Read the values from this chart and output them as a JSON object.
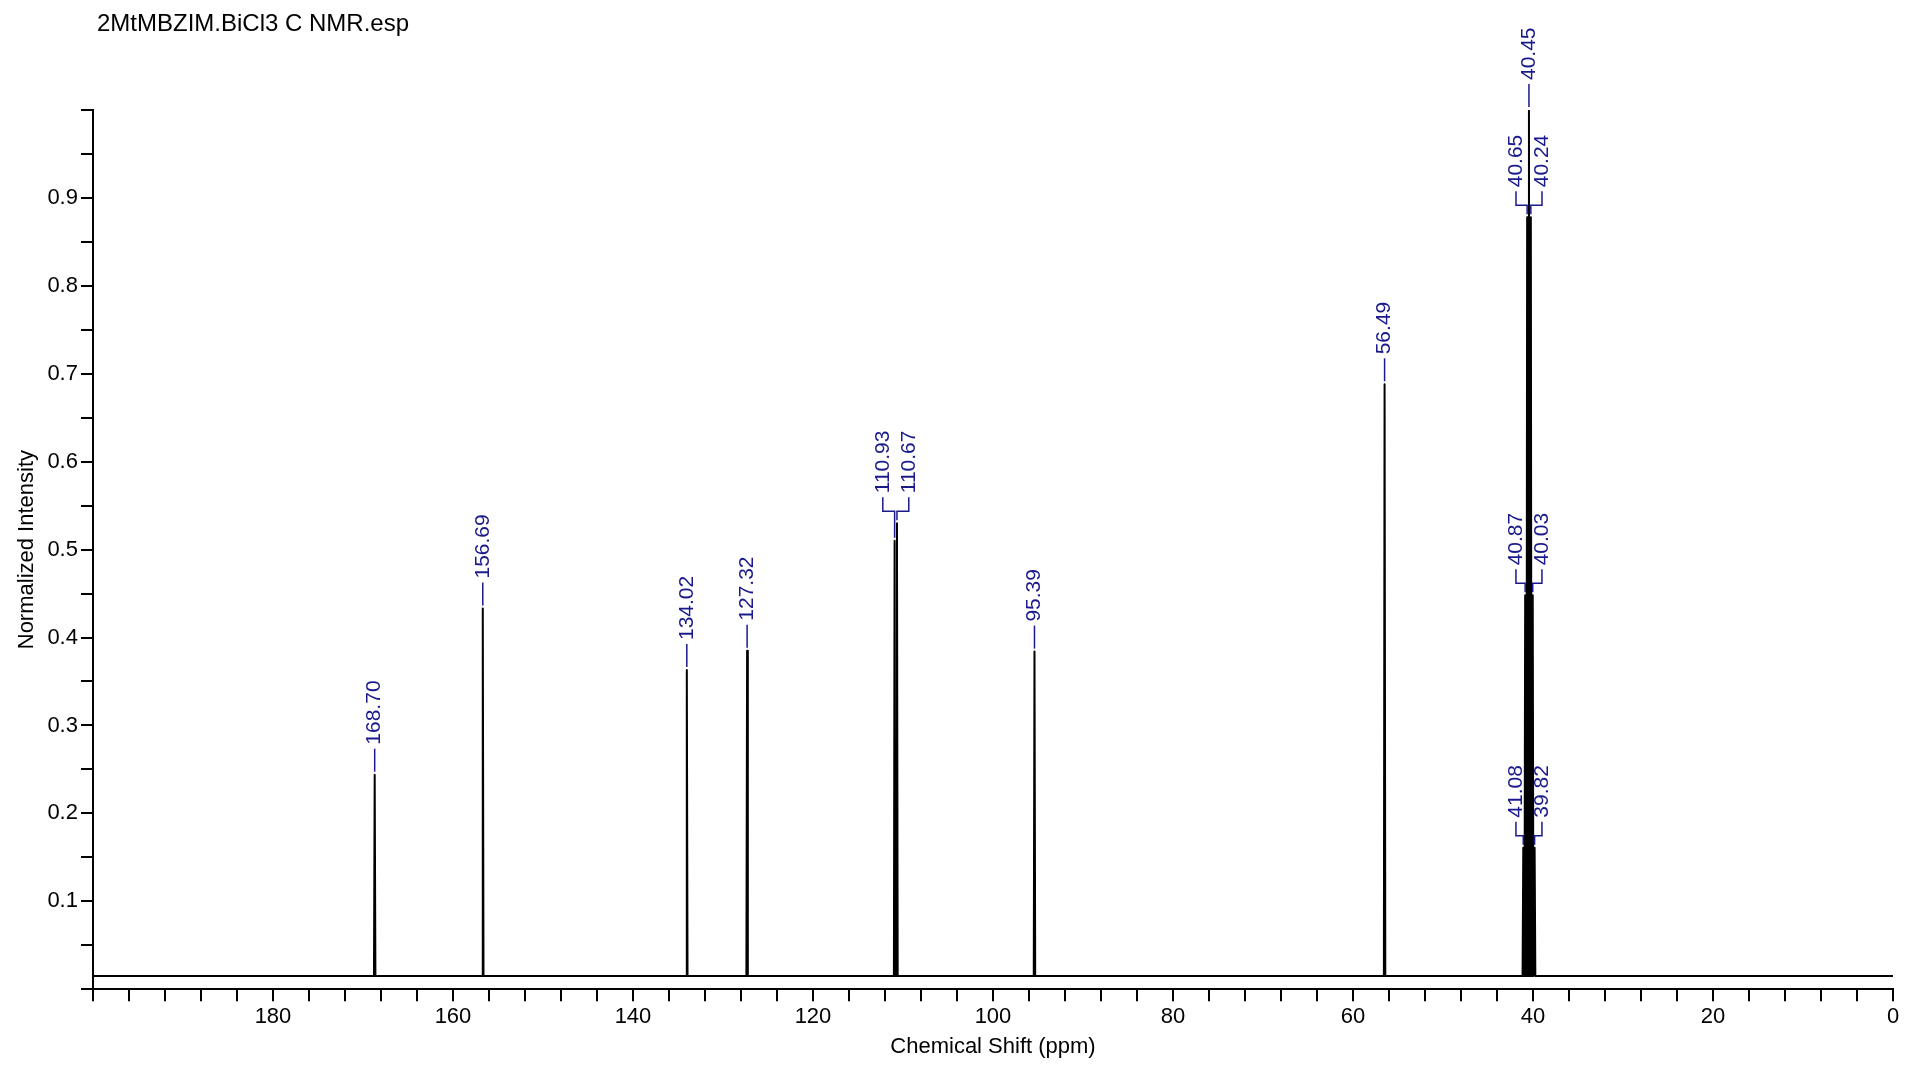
{
  "chart_data": {
    "type": "line",
    "title": "2MtMBZIM.BiCl3 C NMR.esp",
    "xlabel": "Chemical Shift (ppm)",
    "ylabel": "Normalized Intensity",
    "x": [
      200,
      168.78,
      168.7,
      168.62,
      156.77,
      156.69,
      156.61,
      134.1,
      134.02,
      133.94,
      127.4,
      127.32,
      127.24,
      111.01,
      110.93,
      110.85,
      110.75,
      110.67,
      110.59,
      95.47,
      95.39,
      95.31,
      56.57,
      56.49,
      56.41,
      41.16,
      41.08,
      41.0,
      40.95,
      40.87,
      40.79,
      40.73,
      40.65,
      40.57,
      40.53,
      40.45,
      40.37,
      40.32,
      40.24,
      40.16,
      40.11,
      40.03,
      39.95,
      39.9,
      39.82,
      39.74,
      0
    ],
    "series": [
      {
        "color": "#000000",
        "values": [
          0.015,
          0.015,
          0.244,
          0.015,
          0.015,
          0.433,
          0.015,
          0.015,
          0.363,
          0.015,
          0.015,
          0.385,
          0.015,
          0.015,
          0.51,
          0.015,
          0.015,
          0.53,
          0.015,
          0.015,
          0.384,
          0.015,
          0.015,
          0.688,
          0.015,
          0.015,
          0.161,
          0.015,
          0.015,
          0.448,
          0.015,
          0.015,
          0.878,
          0.015,
          0.015,
          1.0,
          0.015,
          0.015,
          0.878,
          0.015,
          0.015,
          0.448,
          0.015,
          0.015,
          0.161,
          0.015,
          0.015
        ]
      }
    ],
    "xlim": [
      200,
      0
    ],
    "ylim": [
      0,
      1.0
    ],
    "xticks": [
      {
        "value": 200,
        "label": null
      },
      {
        "value": 196,
        "label": null
      },
      {
        "value": 192,
        "label": null
      },
      {
        "value": 188,
        "label": null
      },
      {
        "value": 184,
        "label": null
      },
      180,
      {
        "value": 176,
        "label": null
      },
      {
        "value": 172,
        "label": null
      },
      {
        "value": 168,
        "label": null
      },
      {
        "value": 164,
        "label": null
      },
      160,
      {
        "value": 156,
        "label": null
      },
      {
        "value": 152,
        "label": null
      },
      {
        "value": 148,
        "label": null
      },
      {
        "value": 144,
        "label": null
      },
      140,
      {
        "value": 136,
        "label": null
      },
      {
        "value": 132,
        "label": null
      },
      {
        "value": 128,
        "label": null
      },
      {
        "value": 124,
        "label": null
      },
      120,
      {
        "value": 116,
        "label": null
      },
      {
        "value": 112,
        "label": null
      },
      {
        "value": 108,
        "label": null
      },
      {
        "value": 104,
        "label": null
      },
      100,
      {
        "value": 96,
        "label": null
      },
      {
        "value": 92,
        "label": null
      },
      {
        "value": 88,
        "label": null
      },
      {
        "value": 84,
        "label": null
      },
      80,
      {
        "value": 76,
        "label": null
      },
      {
        "value": 72,
        "label": null
      },
      {
        "value": 68,
        "label": null
      },
      {
        "value": 64,
        "label": null
      },
      60,
      {
        "value": 56,
        "label": null
      },
      {
        "value": 52,
        "label": null
      },
      {
        "value": 48,
        "label": null
      },
      {
        "value": 44,
        "label": null
      },
      40,
      {
        "value": 36,
        "label": null
      },
      {
        "value": 32,
        "label": null
      },
      {
        "value": 28,
        "label": null
      },
      {
        "value": 24,
        "label": null
      },
      20,
      {
        "value": 16,
        "label": null
      },
      {
        "value": 12,
        "label": null
      },
      {
        "value": 8,
        "label": null
      },
      {
        "value": 4,
        "label": null
      },
      0
    ],
    "yticks": [
      {
        "value": 0,
        "label": null
      },
      {
        "value": 0.05,
        "label": null
      },
      0.1,
      {
        "value": 0.15,
        "label": null
      },
      0.2,
      {
        "value": 0.25,
        "label": null
      },
      0.3,
      {
        "value": 0.35,
        "label": null
      },
      0.4,
      {
        "value": 0.45,
        "label": null
      },
      0.5,
      {
        "value": 0.55,
        "label": null
      },
      0.6,
      {
        "value": 0.65,
        "label": null
      },
      0.7,
      {
        "value": 0.75,
        "label": null
      },
      0.8,
      {
        "value": 0.85,
        "label": null
      },
      0.9,
      {
        "value": 0.95,
        "label": null
      },
      {
        "value": 1.0,
        "label": null
      }
    ],
    "annotations": [
      {
        "text": "168.70",
        "x": 168.7,
        "y": 0.244
      },
      {
        "text": "156.69",
        "x": 156.69,
        "y": 0.433
      },
      {
        "text": "134.02",
        "x": 134.02,
        "y": 0.363
      },
      {
        "text": "127.32",
        "x": 127.32,
        "y": 0.385
      },
      {
        "text": "110.93",
        "x": 110.93,
        "y": 0.51
      },
      {
        "text": "110.67",
        "x": 110.67,
        "y": 0.53
      },
      {
        "text": "95.39",
        "x": 95.39,
        "y": 0.384
      },
      {
        "text": "56.49",
        "x": 56.49,
        "y": 0.688
      },
      {
        "text": "41.08",
        "x": 41.08,
        "y": 0.161
      },
      {
        "text": "40.87",
        "x": 40.87,
        "y": 0.448
      },
      {
        "text": "40.65",
        "x": 40.65,
        "y": 0.878
      },
      {
        "text": "40.45",
        "x": 40.45,
        "y": 1.0
      },
      {
        "text": "40.24",
        "x": 40.24,
        "y": 0.878
      },
      {
        "text": "40.03",
        "x": 40.03,
        "y": 0.448
      },
      {
        "text": "39.82",
        "x": 39.82,
        "y": 0.161
      }
    ],
    "grid": false,
    "legend": false,
    "marker": "none",
    "line_style": "solid"
  }
}
